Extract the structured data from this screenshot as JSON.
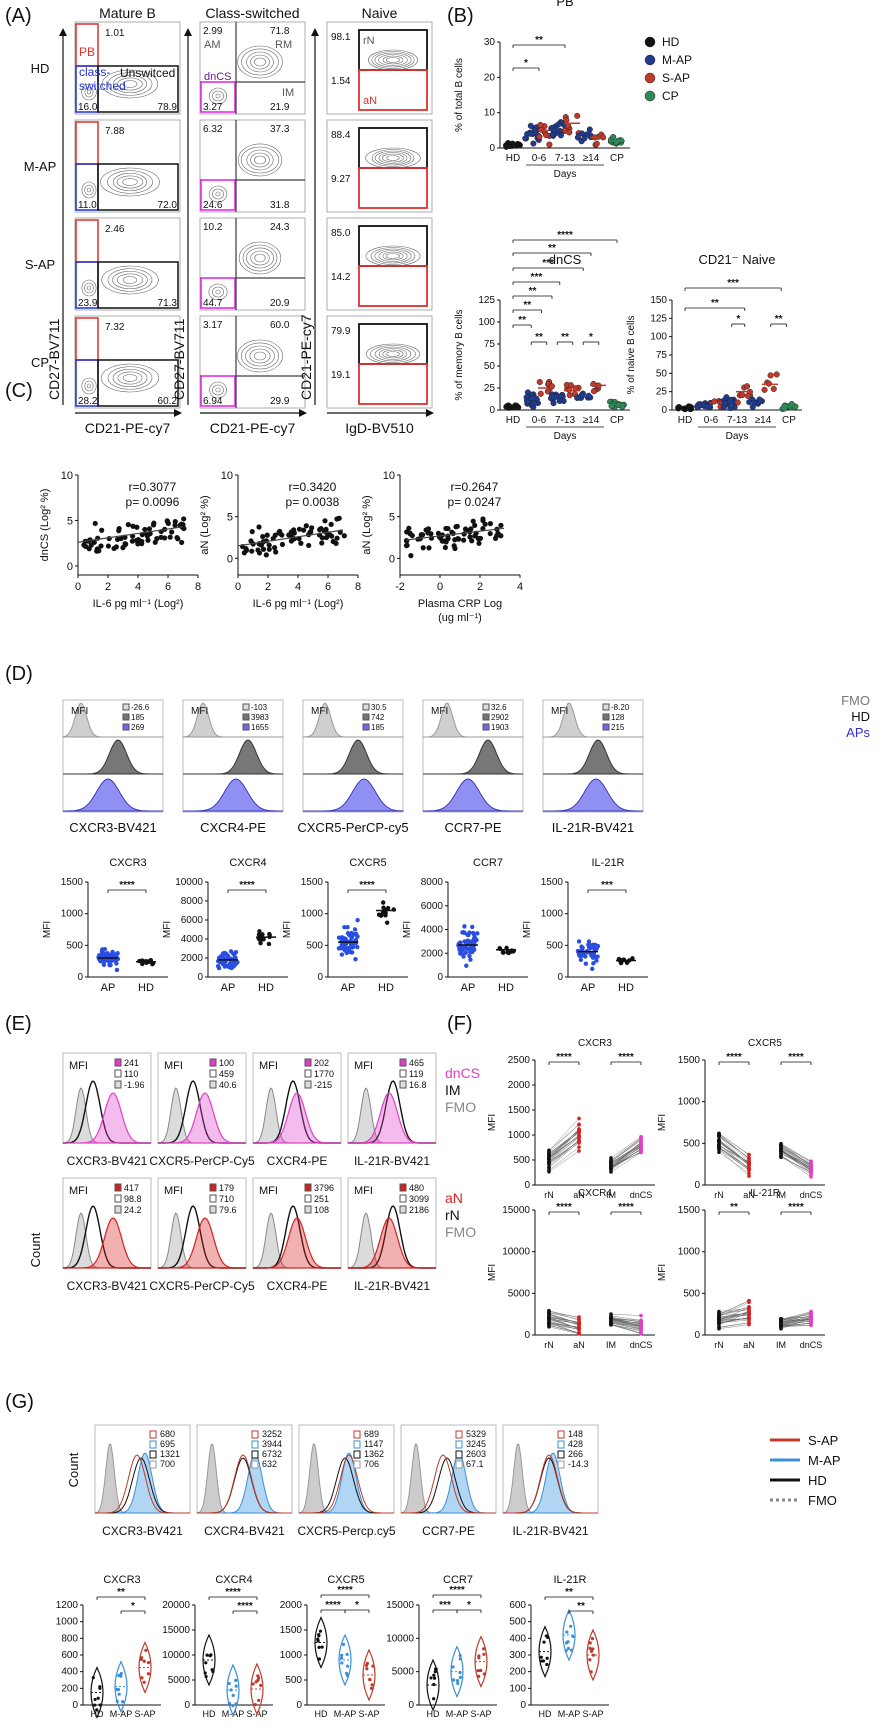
{
  "panel_labels": {
    "A": "(A)",
    "B": "(B)",
    "C": "(C)",
    "D": "(D)",
    "E": "(E)",
    "F": "(F)",
    "G": "(G)"
  },
  "flow": {
    "col_titles": [
      "Mature B",
      "Class-switched",
      "Naive"
    ],
    "row_labels": [
      "HD",
      "M-AP",
      "S-AP",
      "CP"
    ],
    "gate_labels": {
      "PB": "PB",
      "class_switched_1": "class-",
      "class_switched_2": "switched",
      "unswitched": "Unswitced",
      "AM": "AM",
      "RM": "RM",
      "dnCS": "dnCS",
      "IM": "IM",
      "rN": "rN",
      "aN": "aN"
    },
    "axes": {
      "c1_x": "CD21-PE-cy7",
      "c1_y": "CD27-BV711",
      "c2_x": "CD21-PE-cy7",
      "c2_y": "CD27-BV711",
      "c3_x": "IgD-BV510",
      "c3_y": "CD21-PE-cy7"
    },
    "values": [
      {
        "pb": "1.01",
        "cs": "16.0",
        "us": "78.9",
        "am": "2.99",
        "rm": "71.8",
        "dncs": "3.27",
        "im": "21.9",
        "rn": "98.1",
        "an": "1.54"
      },
      {
        "pb": "7.88",
        "cs": "11.0",
        "us": "72.0",
        "am": "6.32",
        "rm": "37.3",
        "dncs": "24.6",
        "im": "31.8",
        "rn": "88.4",
        "an": "9.27"
      },
      {
        "pb": "2.46",
        "cs": "23.9",
        "us": "71.3",
        "am": "10.2",
        "rm": "24.3",
        "dncs": "44.7",
        "im": "20.9",
        "rn": "85.0",
        "an": "14.2"
      },
      {
        "pb": "7.32",
        "cs": "28.2",
        "us": "60.2",
        "am": "3.17",
        "rm": "60.0",
        "dncs": "6.94",
        "im": "29.9",
        "rn": "79.9",
        "an": "19.1"
      }
    ]
  },
  "chart_data": [
    {
      "type": "scatter",
      "id": "B-PB",
      "title": "PB",
      "ylabel": "% of total B cells",
      "xlabel": "Days",
      "ylim": [
        0,
        30
      ],
      "yticks": [
        "0",
        "10",
        "20",
        "30"
      ],
      "categories": [
        "HD",
        "0-6",
        "7-13",
        "≥14",
        "CP"
      ],
      "legend": [
        {
          "name": "HD",
          "color": "#111111"
        },
        {
          "name": "M-AP",
          "color": "#1f3b8f"
        },
        {
          "name": "S-AP",
          "color": "#c0392b"
        },
        {
          "name": "CP",
          "color": "#2e8b57"
        }
      ],
      "series": [
        {
          "name": "HD",
          "group": "HD",
          "mean": 1
        },
        {
          "name": "M-AP",
          "group": "0-6",
          "mean": 4
        },
        {
          "name": "S-AP",
          "group": "0-6",
          "mean": 5
        },
        {
          "name": "M-AP",
          "group": "7-13",
          "mean": 5
        },
        {
          "name": "S-AP",
          "group": "7-13",
          "mean": 7
        },
        {
          "name": "M-AP",
          "group": "≥14",
          "mean": 4
        },
        {
          "name": "S-AP",
          "group": "≥14",
          "mean": 3
        },
        {
          "name": "CP",
          "group": "CP",
          "mean": 2
        }
      ],
      "significance": [
        "*",
        "**"
      ]
    },
    {
      "type": "scatter",
      "id": "B-dnCS",
      "title": "dnCS",
      "ylabel": "% of memory B cells",
      "xlabel": "Days",
      "ylim": [
        0,
        125
      ],
      "yticks": [
        "0",
        "25",
        "50",
        "75",
        "100",
        "125"
      ],
      "categories": [
        "HD",
        "0-6",
        "7-13",
        "≥14",
        "CP"
      ],
      "significance": [
        "****",
        "**",
        "***",
        "***",
        "**",
        "**",
        "**",
        "**",
        "*"
      ]
    },
    {
      "type": "scatter",
      "id": "B-naive",
      "title": "CD21⁻ Naive",
      "ylabel": "% of naive B cells",
      "xlabel": "Days",
      "ylim": [
        0,
        150
      ],
      "yticks": [
        "0",
        "25",
        "50",
        "75",
        "100",
        "125",
        "150"
      ],
      "categories": [
        "HD",
        "0-6",
        "7-13",
        "≥14",
        "CP"
      ],
      "significance": [
        "***",
        "**",
        "*",
        "**"
      ]
    },
    {
      "type": "scatter",
      "id": "C1",
      "xlabel": "IL-6 pg ml⁻¹ (Log²)",
      "ylabel": "dnCS (Log² %)",
      "r": "r=0.3077",
      "p": "p= 0.0096",
      "xlim": [
        0,
        8
      ],
      "ylim": [
        -1,
        10
      ],
      "xticks": [
        "0",
        "2",
        "4",
        "6",
        "8"
      ],
      "yticks": [
        "0",
        "5",
        "10"
      ],
      "trend": [
        [
          0,
          2.6
        ],
        [
          7,
          4.3
        ]
      ]
    },
    {
      "type": "scatter",
      "id": "C2",
      "xlabel": "IL-6 pg ml⁻¹ (Log²)",
      "ylabel": "aN (Log² %)",
      "r": "r=0.3420",
      "p": "p= 0.0038",
      "xlim": [
        0,
        8
      ],
      "ylim": [
        -2,
        10
      ],
      "xticks": [
        "0",
        "2",
        "4",
        "6",
        "8"
      ],
      "yticks": [
        "0",
        "5",
        "10"
      ],
      "trend": [
        [
          0,
          1.5
        ],
        [
          7,
          3.4
        ]
      ]
    },
    {
      "type": "scatter",
      "id": "C3",
      "xlabel": "Plasma CRP Log",
      "xlabel2": "(ug ml⁻¹)",
      "ylabel": "aN (Log² %)",
      "r": "r=0.2647",
      "p": "p= 0.0247",
      "xlim": [
        -2,
        4
      ],
      "ylim": [
        -2,
        10
      ],
      "xticks": [
        "-2",
        "0",
        "2",
        "4"
      ],
      "yticks": [
        "0",
        "5",
        "10"
      ],
      "trend": [
        [
          -1.7,
          2.2
        ],
        [
          3.2,
          3.6
        ]
      ]
    },
    {
      "type": "scatter",
      "id": "D-bottom",
      "ylabel": "MFI",
      "categories": [
        "AP",
        "HD"
      ],
      "panels": [
        {
          "title": "CXCR3",
          "ylim": [
            0,
            1500
          ],
          "yticks": [
            "0",
            "500",
            "1000",
            "1500"
          ],
          "sig": "****",
          "means": [
            300,
            240
          ]
        },
        {
          "title": "CXCR4",
          "ylim": [
            0,
            10000
          ],
          "yticks": [
            "0",
            "2000",
            "4000",
            "6000",
            "8000",
            "10000"
          ],
          "sig": "****",
          "means": [
            1800,
            4200
          ]
        },
        {
          "title": "CXCR5",
          "ylim": [
            0,
            1500
          ],
          "yticks": [
            "0",
            "500",
            "1000",
            "1500"
          ],
          "sig": "****",
          "means": [
            550,
            1050
          ]
        },
        {
          "title": "CCR7",
          "ylim": [
            0,
            8000
          ],
          "yticks": [
            "0",
            "2000",
            "4000",
            "6000",
            "8000"
          ],
          "sig": "",
          "means": [
            2700,
            2300
          ]
        },
        {
          "title": "IL-21R",
          "ylim": [
            0,
            1500
          ],
          "yticks": [
            "0",
            "500",
            "1000",
            "1500"
          ],
          "sig": "***",
          "means": [
            400,
            260
          ]
        }
      ]
    },
    {
      "type": "line",
      "id": "F",
      "ylabel": "MFI",
      "categories": [
        "rN",
        "aN",
        "IM",
        "dnCS"
      ],
      "panels": [
        {
          "title": "CXCR3",
          "ylim": [
            0,
            2500
          ],
          "yticks": [
            "0",
            "500",
            "1000",
            "1500",
            "2000",
            "2500"
          ],
          "sig": [
            "****",
            "****"
          ]
        },
        {
          "title": "CXCR5",
          "ylim": [
            0,
            1500
          ],
          "yticks": [
            "0",
            "500",
            "1000",
            "1500"
          ],
          "sig": [
            "****",
            "****"
          ]
        },
        {
          "title": "CXCR4",
          "ylim": [
            0,
            15000
          ],
          "yticks": [
            "0",
            "5000",
            "10000",
            "15000"
          ],
          "sig": [
            "****",
            "****"
          ]
        },
        {
          "title": "IL-21R",
          "ylim": [
            0,
            1500
          ],
          "yticks": [
            "0",
            "500",
            "1000",
            "1500"
          ],
          "sig": [
            "**",
            "****"
          ]
        }
      ]
    },
    {
      "type": "violin",
      "id": "G-bottom",
      "categories": [
        "HD",
        "M-AP",
        "S-AP"
      ],
      "panels": [
        {
          "title": "CXCR3",
          "ylim": [
            0,
            1200
          ],
          "yticks": [
            "0",
            "200",
            "400",
            "600",
            "800",
            "1000",
            "1200"
          ],
          "sig": [
            "**",
            "*"
          ],
          "medians": [
            150,
            220,
            450
          ]
        },
        {
          "title": "CXCR4",
          "ylim": [
            0,
            20000
          ],
          "yticks": [
            "0",
            "5000",
            "10000",
            "15000",
            "20000"
          ],
          "sig": [
            "****",
            "****"
          ],
          "medians": [
            9000,
            3000,
            3200
          ]
        },
        {
          "title": "CXCR5",
          "ylim": [
            0,
            2000
          ],
          "yticks": [
            "0",
            "500",
            "1000",
            "1500",
            "2000"
          ],
          "sig": [
            "****",
            "****",
            "*"
          ],
          "medians": [
            1250,
            900,
            600
          ]
        },
        {
          "title": "CCR7",
          "ylim": [
            0,
            15000
          ],
          "yticks": [
            "0",
            "5000",
            "10000",
            "15000"
          ],
          "sig": [
            "****",
            "***",
            "*"
          ],
          "medians": [
            3000,
            5000,
            6500
          ]
        },
        {
          "title": "IL-21R",
          "ylim": [
            0,
            600
          ],
          "yticks": [
            "0",
            "100",
            "200",
            "300",
            "400",
            "500",
            "600"
          ],
          "sig": [
            "**",
            "**"
          ],
          "medians": [
            320,
            420,
            300
          ]
        }
      ]
    }
  ],
  "histD": {
    "titles": [
      "CXCR3-BV421",
      "CXCR4-PE",
      "CXCR5-PerCP-cy5",
      "CCR7-PE",
      "IL-21R-BV421"
    ],
    "mfi_label": "MFI",
    "values": [
      [
        "-26.6",
        "185",
        "269"
      ],
      [
        "-103",
        "3983",
        "1655"
      ],
      [
        "30.5",
        "742",
        "185"
      ],
      [
        "32.6",
        "2902",
        "1903"
      ],
      [
        "-8.20",
        "128",
        "215"
      ]
    ],
    "legend": [
      "FMO",
      "HD",
      "APs"
    ]
  },
  "histE": {
    "titles_top": [
      "CXCR3-BV421",
      "CXCR5-PerCP-Cy5",
      "CXCR4-PE",
      "IL-21R-BV421"
    ],
    "titles_bottom": [
      "CXCR3-BV421",
      "CXCR5-PerCP-Cy5",
      "CXCR4-PE",
      "IL-21R-BV421"
    ],
    "mfi_label": "MFI",
    "ylabel": "Count",
    "top_values": [
      [
        "241",
        "110",
        "-1.96"
      ],
      [
        "100",
        "459",
        "40.6"
      ],
      [
        "202",
        "1770",
        "-215"
      ],
      [
        "465",
        "119",
        "16.8"
      ]
    ],
    "bottom_values": [
      [
        "417",
        "98.8",
        "24.2"
      ],
      [
        "179",
        "710",
        "79.6"
      ],
      [
        "3796",
        "251",
        "108"
      ],
      [
        "480",
        "3099",
        "2186"
      ]
    ],
    "legend_top": [
      "dnCS",
      "IM",
      "FMO"
    ],
    "legend_bottom": [
      "aN",
      "rN",
      "FMO"
    ]
  },
  "histG": {
    "titles": [
      "CXCR3-BV421",
      "CXCR4-BV421",
      "CXCR5-Percp.cy5",
      "CCR7-PE",
      "IL-21R-BV421"
    ],
    "ylabel": "Count",
    "values": [
      [
        "680",
        "695",
        "1321",
        "700"
      ],
      [
        "3252",
        "3944",
        "6732",
        "632"
      ],
      [
        "689",
        "1147",
        "1362",
        "706"
      ],
      [
        "5329",
        "3245",
        "2603",
        "67.1"
      ],
      [
        "148",
        "428",
        "266",
        "-14.3"
      ]
    ],
    "legend": [
      "S-AP",
      "M-AP",
      "HD",
      "FMO"
    ]
  },
  "colors": {
    "HD": "#111111",
    "MAP": "#1f3b8f",
    "SAP": "#c0392b",
    "CP": "#2e8b57",
    "ap_fill": "#6b6bef",
    "dnCS": "#e040c8",
    "aN": "#d62020",
    "FMO": "#bdbdbd",
    "gate_red": "#e03030",
    "gate_blue": "#2030d0",
    "gate_magenta": "#e020e0",
    "g_sap": "#c0392b",
    "g_map": "#3a8fd6"
  }
}
